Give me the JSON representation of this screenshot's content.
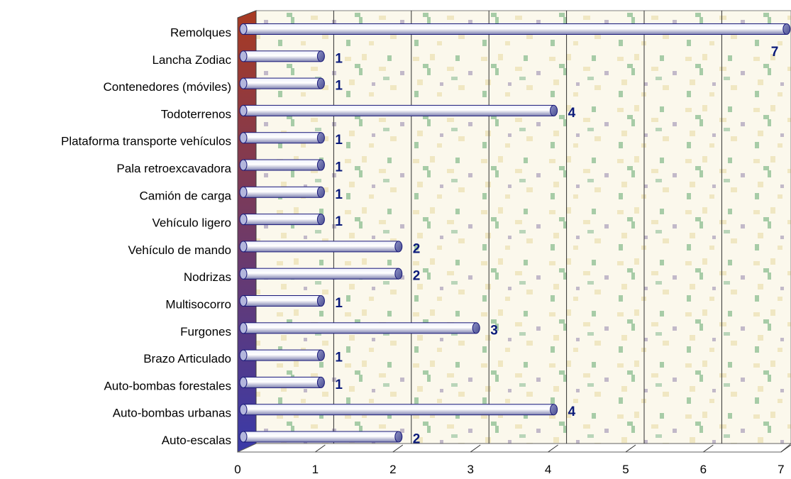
{
  "chart_data": {
    "type": "bar",
    "orientation": "horizontal",
    "three_d": true,
    "categories": [
      "Remolques",
      "Lancha Zodiac",
      "Contenedores (móviles)",
      "Todoterrenos",
      "Plataforma transporte vehículos",
      "Pala retroexcavadora",
      "Camión de carga",
      "Vehículo ligero",
      "Vehículo de mando",
      "Nodrizas",
      "Multisocorro",
      "Furgones",
      "Brazo Articulado",
      "Auto-bombas forestales",
      "Auto-bombas urbanas",
      "Auto-escalas"
    ],
    "values": [
      7,
      1,
      1,
      4,
      1,
      1,
      1,
      1,
      2,
      2,
      1,
      3,
      1,
      1,
      4,
      2
    ],
    "xlim": [
      0,
      7
    ],
    "x_ticks": [
      "0",
      "1",
      "2",
      "3",
      "4",
      "5",
      "6",
      "7"
    ],
    "title": "",
    "xlabel": "",
    "ylabel": "",
    "grid": true,
    "legend": "none",
    "colors": {
      "bar": "#c9cbe6",
      "bar_edge": "#1a1a7a",
      "data_label": "#0a1a7a",
      "side_wall_top": "#a83a22",
      "side_wall_bottom": "#3a3aa8",
      "background_pattern": "#f5f0d8",
      "background_accent": "#9fc79f"
    }
  }
}
